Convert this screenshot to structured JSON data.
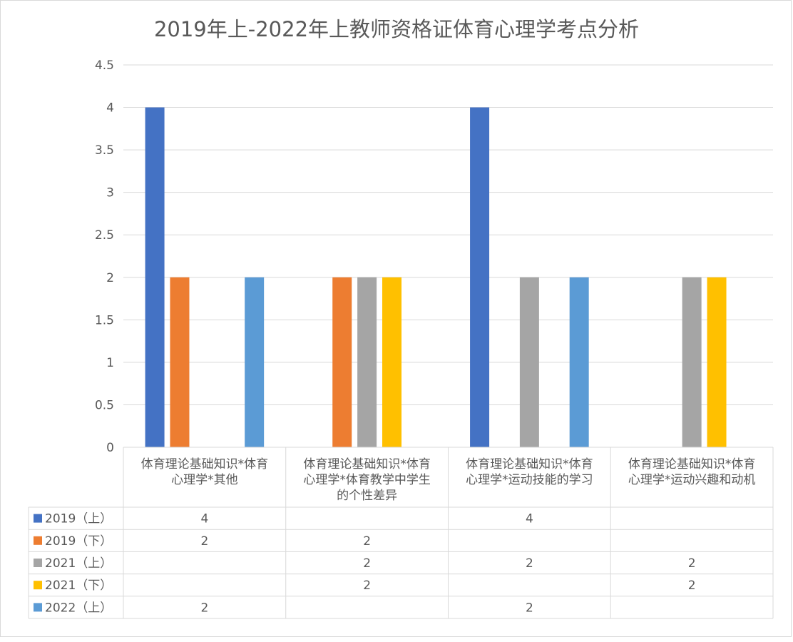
{
  "chart_data": {
    "type": "bar",
    "title": "2019年上-2022年上教师资格证体育心理学考点分析",
    "categories": [
      [
        "体育理论基础知识*体育",
        "心理学*其他"
      ],
      [
        "体育理论基础知识*体育",
        "心理学*体育教学中学生",
        "的个性差异"
      ],
      [
        "体育理论基础知识*体育",
        "心理学*运动技能的学习"
      ],
      [
        "体育理论基础知识*体育",
        "心理学*运动兴趣和动机"
      ]
    ],
    "series": [
      {
        "name": "2019（上）",
        "color": "#4472c4",
        "values": [
          4,
          null,
          4,
          null
        ]
      },
      {
        "name": "2019（下）",
        "color": "#ed7d31",
        "values": [
          2,
          2,
          null,
          null
        ]
      },
      {
        "name": "2021（上）",
        "color": "#a5a5a5",
        "values": [
          null,
          2,
          2,
          2
        ]
      },
      {
        "name": "2021（下）",
        "color": "#ffc000",
        "values": [
          null,
          2,
          null,
          2
        ]
      },
      {
        "name": "2022（上）",
        "color": "#5b9bd5",
        "values": [
          2,
          null,
          2,
          null
        ]
      }
    ],
    "yticks": [
      "0",
      "0.5",
      "1",
      "1.5",
      "2",
      "2.5",
      "3",
      "3.5",
      "4",
      "4.5"
    ],
    "ylim": [
      0,
      4.5
    ],
    "grid": true,
    "legend": "data-table"
  }
}
